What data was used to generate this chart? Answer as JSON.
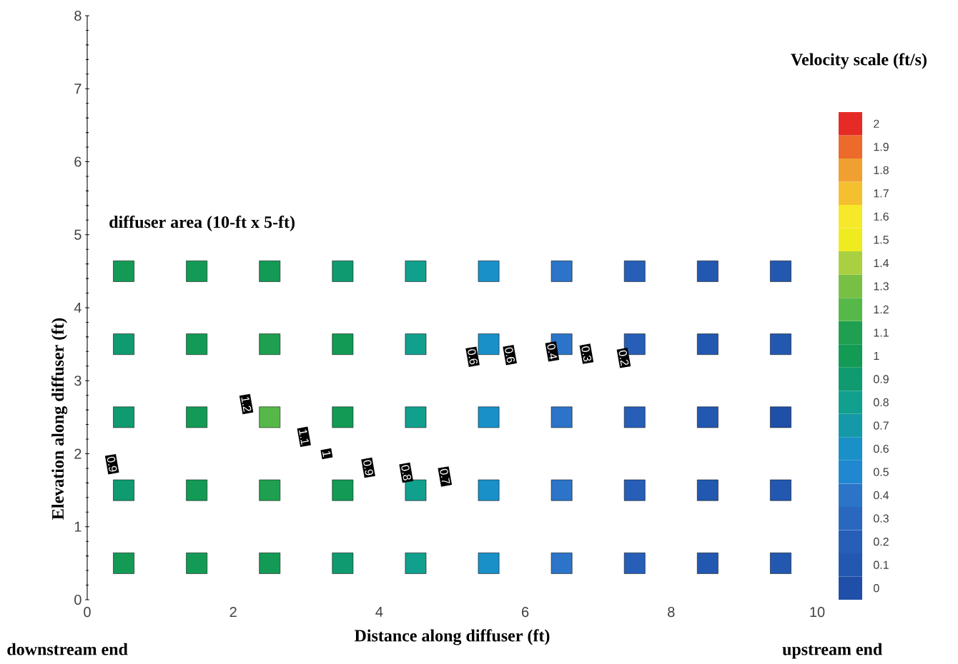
{
  "chart_data": {
    "type": "scatter",
    "marker": "square",
    "xlabel": "Distance along diffuser (ft)",
    "ylabel": "Elevation along diffuser (ft)",
    "clabel": "Velocity scale (ft/s)",
    "x": [
      0.5,
      1.5,
      2.5,
      3.5,
      4.5,
      5.5,
      6.5,
      7.5,
      8.5,
      9.5,
      0.5,
      1.5,
      2.5,
      3.5,
      4.5,
      5.5,
      6.5,
      7.5,
      8.5,
      9.5,
      0.5,
      1.5,
      2.5,
      3.5,
      4.5,
      5.5,
      6.5,
      7.5,
      8.5,
      9.5,
      0.5,
      1.5,
      2.5,
      3.5,
      4.5,
      5.5,
      6.5,
      7.5,
      8.5,
      9.5,
      0.5,
      1.5,
      2.5,
      3.5,
      4.5,
      5.5,
      6.5,
      7.5,
      8.5,
      9.5
    ],
    "values": [
      4.5,
      4.5,
      4.5,
      4.5,
      4.5,
      4.5,
      4.5,
      4.5,
      4.5,
      4.5,
      3.5,
      3.5,
      3.5,
      3.5,
      3.5,
      3.5,
      3.5,
      3.5,
      3.5,
      3.5,
      2.5,
      2.5,
      2.5,
      2.5,
      2.5,
      2.5,
      2.5,
      2.5,
      2.5,
      2.5,
      1.5,
      1.5,
      1.5,
      1.5,
      1.5,
      1.5,
      1.5,
      1.5,
      1.5,
      1.5,
      0.5,
      0.5,
      0.5,
      0.5,
      0.5,
      0.5,
      0.5,
      0.5,
      0.5,
      0.5
    ],
    "cvalues": [
      1.0,
      1.0,
      1.0,
      0.9,
      0.8,
      0.6,
      0.4,
      0.2,
      0.1,
      0.1,
      0.9,
      1.0,
      1.1,
      1.0,
      0.8,
      0.6,
      0.4,
      0.2,
      0.1,
      0.1,
      0.9,
      1.0,
      1.2,
      1.0,
      0.8,
      0.6,
      0.4,
      0.2,
      0.1,
      0.0,
      0.9,
      1.0,
      1.1,
      1.0,
      0.8,
      0.6,
      0.4,
      0.2,
      0.1,
      0.1,
      1.0,
      1.0,
      1.0,
      0.9,
      0.8,
      0.6,
      0.4,
      0.2,
      0.1,
      0.1
    ],
    "xlim": [
      0,
      10
    ],
    "xticks": [
      0,
      2,
      4,
      6,
      8,
      10
    ],
    "ylim": [
      0,
      8
    ],
    "yticks": [
      0,
      1,
      2,
      3,
      4,
      5,
      6,
      7,
      8
    ],
    "clim": [
      -0.05,
      2.05
    ],
    "cticks": [
      0,
      0.1,
      0.2,
      0.3,
      0.4,
      0.5,
      0.6,
      0.7,
      0.8,
      0.9,
      1,
      1.1,
      1.2,
      1.3,
      1.4,
      1.5,
      1.6,
      1.7,
      1.8,
      1.9,
      2
    ],
    "annotations": [
      "diffuser area (10-ft x 5-ft)",
      "downstream end",
      "upstream end",
      "0.9",
      "1.2",
      "1.1",
      "1",
      "0.9",
      "0.8",
      "0.7",
      "0.6",
      "0.6",
      "0.4",
      "0.3",
      "0.2"
    ]
  }
}
